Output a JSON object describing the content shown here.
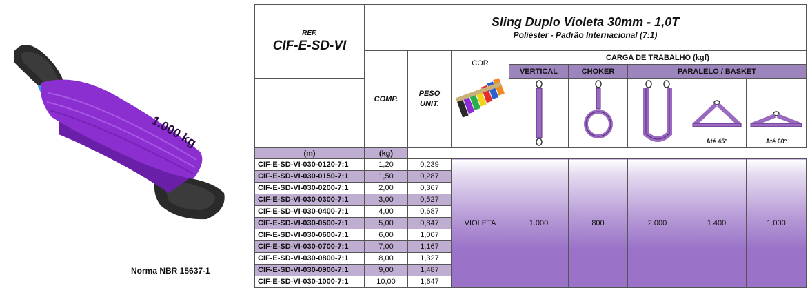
{
  "title": "Sling Duplo Violeta 30mm - 1,0T",
  "subtitle": "Poliéster - Padrão Internacional (7:1)",
  "ref_label": "REF.",
  "ref_code": "CIF-E-SD-VI",
  "norma": "Norma NBR 15637-1",
  "headers": {
    "comp": "COMP.",
    "peso_line1": "PESO",
    "peso_line2": "UNIT.",
    "cor": "COR",
    "carga": "CARGA DE TRABALHO (kgf)",
    "vertical": "VERTICAL",
    "choker": "CHOKER",
    "paralelo": "PARALELO / BASKET",
    "unit_m": "(m)",
    "unit_kg": "(kg)",
    "angle45": "Até 45°",
    "angle60": "Até 60°"
  },
  "rows": [
    {
      "ref": "CIF-E-SD-VI-030-0120-7:1",
      "comp": "1,20",
      "peso": "0,239"
    },
    {
      "ref": "CIF-E-SD-VI-030-0150-7:1",
      "comp": "1,50",
      "peso": "0,287"
    },
    {
      "ref": "CIF-E-SD-VI-030-0200-7:1",
      "comp": "2,00",
      "peso": "0,367"
    },
    {
      "ref": "CIF-E-SD-VI-030-0300-7:1",
      "comp": "3,00",
      "peso": "0,527"
    },
    {
      "ref": "CIF-E-SD-VI-030-0400-7:1",
      "comp": "4,00",
      "peso": "0,687"
    },
    {
      "ref": "CIF-E-SD-VI-030-0500-7:1",
      "comp": "5,00",
      "peso": "0,847"
    },
    {
      "ref": "CIF-E-SD-VI-030-0600-7:1",
      "comp": "6,00",
      "peso": "1,007"
    },
    {
      "ref": "CIF-E-SD-VI-030-0700-7:1",
      "comp": "7,00",
      "peso": "1,167"
    },
    {
      "ref": "CIF-E-SD-VI-030-0800-7:1",
      "comp": "8,00",
      "peso": "1,327"
    },
    {
      "ref": "CIF-E-SD-VI-030-0900-7:1",
      "comp": "9,00",
      "peso": "1,487"
    },
    {
      "ref": "CIF-E-SD-VI-030-1000-7:1",
      "comp": "10,00",
      "peso": "1,647"
    }
  ],
  "values": {
    "cor": "VIOLETA",
    "vertical": "1.000",
    "choker": "800",
    "basket": "2.000",
    "angle45": "1.400",
    "angle60": "1.000"
  },
  "photo_label": "1.000 kg",
  "colors": {
    "violet": "#8b2fd0",
    "violet_dark": "#5a1690",
    "row_alt": "#bfaed2",
    "header_bar": "#9c84bd",
    "sling_eye": "#2a2a2a"
  },
  "icons": {
    "photo": "violet-sling-photo-icon",
    "cor": "color-slings-icon",
    "vertical": "vertical-lift-icon",
    "choker": "choker-lift-icon",
    "basket": "basket-lift-icon",
    "angle45": "bridle-45-icon",
    "angle60": "bridle-60-icon"
  }
}
